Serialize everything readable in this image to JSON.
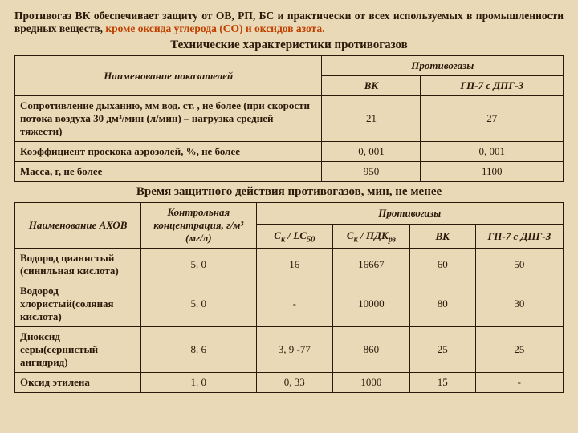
{
  "intro": {
    "part1": "Противогаз ВК обеспечивает защиту от ОВ, РП, БС и практически от всех используемых в промышленности вредных веществ, ",
    "highlight": "кроме оксида углерода (CO) и оксидов азота."
  },
  "table1": {
    "title": "Технические характеристики противогазов",
    "headers": {
      "name": "Наименование показателей",
      "group": "Противогазы",
      "c1": "ВК",
      "c2": "ГП-7 с ДПГ-3"
    },
    "rows": [
      {
        "label": "Сопротивление дыханию, мм вод. ст. , не более (при скорости потока воздуха 30 дм³/мин (л/мин) – нагрузка средней тяжести)",
        "v1": "21",
        "v2": "27"
      },
      {
        "label": "Коэффициент проскока аэрозолей, %, не более",
        "v1": "0, 001",
        "v2": "0, 001"
      },
      {
        "label": "Масса, г, не более",
        "v1": "950",
        "v2": "1100"
      }
    ]
  },
  "table2": {
    "title": "Время защитного действия противогазов, мин, не менее",
    "headers": {
      "name": "Наименование АХОВ",
      "conc": "Контрольная концентрация, г/м³ (мг/л)",
      "group": "Противогазы",
      "c1a": "C",
      "c1b": " / LC",
      "c2a": "C",
      "c2b": " / ПДК",
      "sub_k": "к",
      "sub_50": "50",
      "sub_rz": "рз",
      "c3": "ВК",
      "c4": "ГП-7 с ДПГ-3"
    },
    "rows": [
      {
        "label": "Водород цианистый (синильная кислота)",
        "conc": "5. 0",
        "v1": "16",
        "v2": "16667",
        "v3": "60",
        "v4": "50"
      },
      {
        "label": "Водород хлористый(соляная кислота)",
        "conc": "5. 0",
        "v1": "-",
        "v2": "10000",
        "v3": "80",
        "v4": "30"
      },
      {
        "label": "Диоксид серы(сернистый ангидрид)",
        "conc": "8. 6",
        "v1": "3, 9 -77",
        "v2": "860",
        "v3": "25",
        "v4": "25"
      },
      {
        "label": "Оксид этилена",
        "conc": "1. 0",
        "v1": "0, 33",
        "v2": "1000",
        "v3": "15",
        "v4": "-"
      }
    ],
    "col_widths": {
      "name": "23%",
      "conc": "21%",
      "c1": "14%",
      "c2": "14%",
      "c3": "12%",
      "c4": "16%"
    }
  }
}
